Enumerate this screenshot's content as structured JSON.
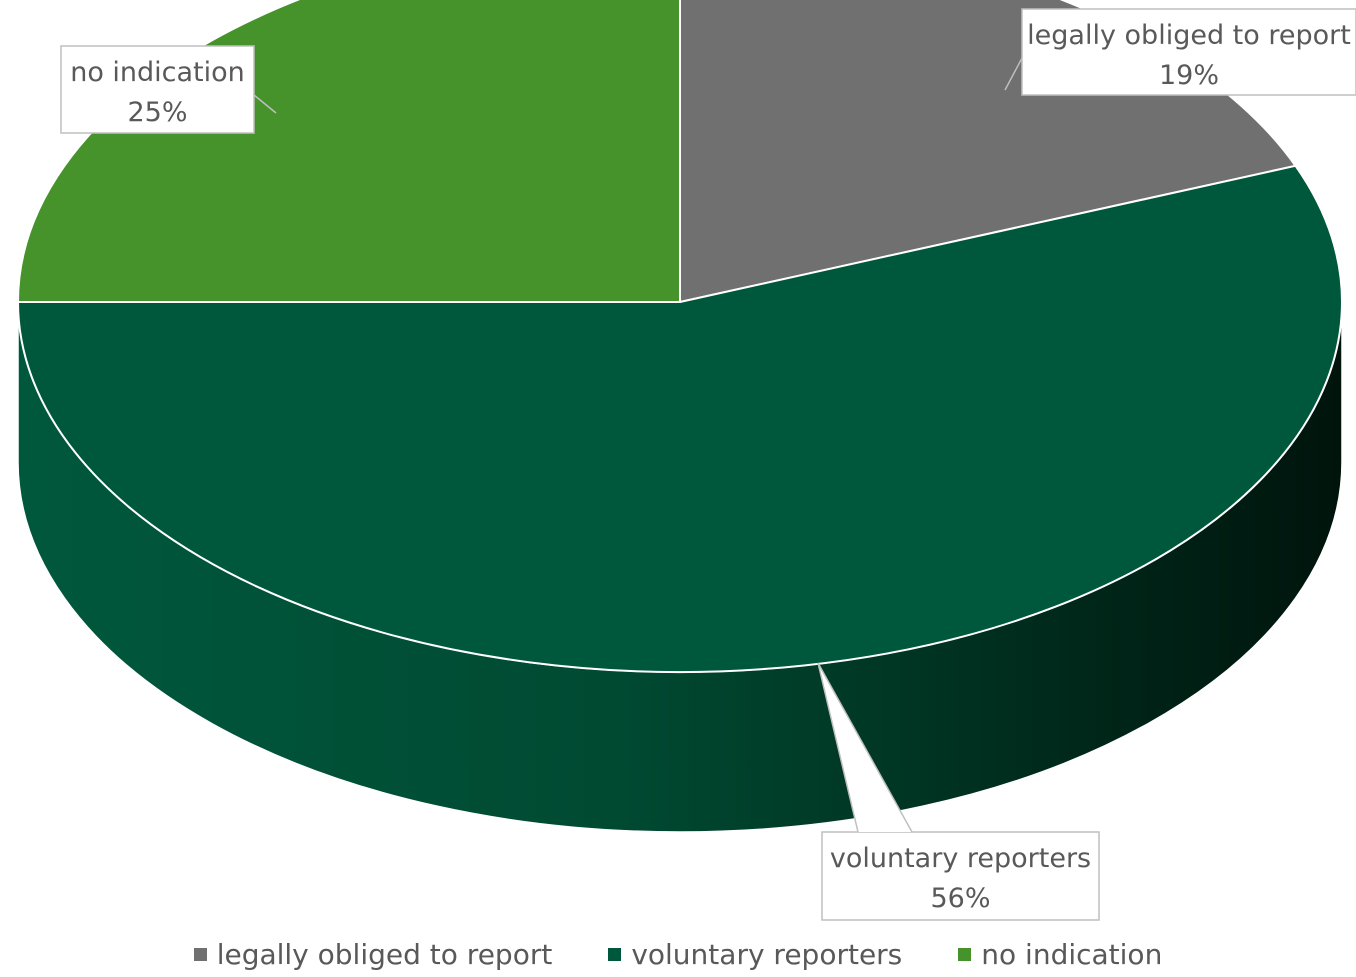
{
  "chart_data": {
    "type": "pie",
    "title": "",
    "legend_position": "bottom",
    "slices": [
      {
        "name": "legally obliged to report",
        "value": 19,
        "label": "19%",
        "color": "#707070"
      },
      {
        "name": "voluntary reporters",
        "value": 56,
        "label": "56%",
        "color": "#00583C"
      },
      {
        "name": "no indication",
        "value": 25,
        "label": "25%",
        "color": "#46922B"
      }
    ]
  }
}
